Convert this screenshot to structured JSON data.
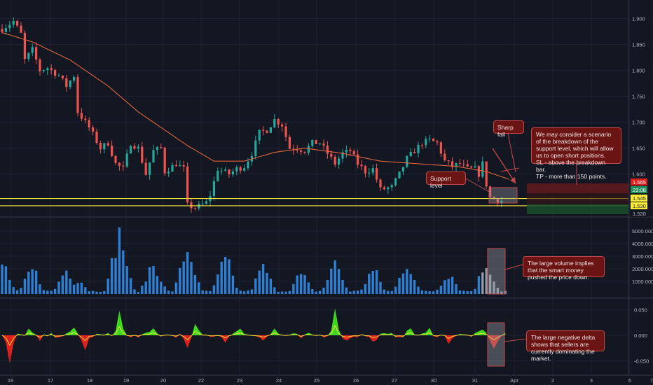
{
  "colors": {
    "background": "#131722",
    "up": "#26a69a",
    "down": "#ef5350",
    "ma": "#e0643c",
    "support": "#ffeb3b",
    "volume": "#2f7fd3",
    "delta_pos": "#3fdc1f",
    "delta_neg": "#e3211f",
    "delta_line": "#f5d835",
    "note_bg": "#6b1414",
    "note_border": "#c4474a"
  },
  "chart_data": [
    {
      "type": "candlestick",
      "x_ticks": [
        "16",
        "17",
        "18",
        "19",
        "20",
        "22",
        "23",
        "24",
        "25",
        "26",
        "27",
        "30",
        "31",
        "Apr",
        "2",
        "3",
        "6",
        "7"
      ],
      "y_ticks": [
        "1.900",
        "1.850",
        "1.800",
        "1.750",
        "1.700",
        "1.650",
        "1.600"
      ],
      "ylim": [
        1.52,
        1.925
      ],
      "close_path": [
        [
          0,
          1.88
        ],
        [
          3,
          1.895
        ],
        [
          5,
          1.87
        ],
        [
          6,
          1.82
        ],
        [
          8,
          1.84
        ],
        [
          10,
          1.8
        ],
        [
          12,
          1.805
        ],
        [
          13,
          1.8
        ],
        [
          15,
          1.79
        ],
        [
          17,
          1.77
        ],
        [
          19,
          1.79
        ],
        [
          20,
          1.72
        ],
        [
          23,
          1.69
        ],
        [
          26,
          1.65
        ],
        [
          28,
          1.66
        ],
        [
          30,
          1.62
        ],
        [
          32,
          1.61
        ],
        [
          34,
          1.66
        ],
        [
          36,
          1.65
        ],
        [
          38,
          1.6
        ],
        [
          40,
          1.645
        ],
        [
          42,
          1.65
        ],
        [
          43,
          1.605
        ],
        [
          46,
          1.62
        ],
        [
          48,
          1.61
        ],
        [
          49,
          1.54
        ],
        [
          51,
          1.535
        ],
        [
          54,
          1.545
        ],
        [
          55,
          1.56
        ],
        [
          57,
          1.61
        ],
        [
          60,
          1.6
        ],
        [
          62,
          1.61
        ],
        [
          64,
          1.615
        ],
        [
          66,
          1.64
        ],
        [
          68,
          1.68
        ],
        [
          70,
          1.685
        ],
        [
          72,
          1.705
        ],
        [
          74,
          1.695
        ],
        [
          76,
          1.65
        ],
        [
          78,
          1.65
        ],
        [
          80,
          1.645
        ],
        [
          82,
          1.66
        ],
        [
          84,
          1.66
        ],
        [
          86,
          1.64
        ],
        [
          88,
          1.62
        ],
        [
          90,
          1.64
        ],
        [
          92,
          1.645
        ],
        [
          94,
          1.62
        ],
        [
          96,
          1.605
        ],
        [
          98,
          1.61
        ],
        [
          100,
          1.57
        ],
        [
          103,
          1.575
        ],
        [
          105,
          1.6
        ],
        [
          107,
          1.63
        ],
        [
          109,
          1.645
        ],
        [
          111,
          1.66
        ],
        [
          113,
          1.665
        ],
        [
          115,
          1.66
        ],
        [
          117,
          1.625
        ],
        [
          119,
          1.615
        ],
        [
          121,
          1.62
        ],
        [
          123,
          1.61
        ],
        [
          125,
          1.61
        ],
        [
          126,
          1.6
        ],
        [
          127,
          1.62
        ],
        [
          128,
          1.58
        ],
        [
          129,
          1.555
        ],
        [
          130,
          1.552
        ],
        [
          131,
          1.549
        ]
      ],
      "moving_average": [
        [
          0,
          1.873
        ],
        [
          8,
          1.855
        ],
        [
          18,
          1.82
        ],
        [
          28,
          1.77
        ],
        [
          36,
          1.72
        ],
        [
          44,
          1.68
        ],
        [
          49,
          1.655
        ],
        [
          56,
          1.625
        ],
        [
          64,
          1.625
        ],
        [
          72,
          1.642
        ],
        [
          80,
          1.65
        ],
        [
          90,
          1.64
        ],
        [
          100,
          1.625
        ],
        [
          110,
          1.62
        ],
        [
          120,
          1.615
        ],
        [
          128,
          1.605
        ],
        [
          134,
          1.59
        ]
      ],
      "support_lines": [
        1.553,
        1.539
      ],
      "price_labels": [
        {
          "text": "1.565",
          "kind": "stop"
        },
        {
          "text": "23:08",
          "kind": "countdown"
        },
        {
          "text": "1.545",
          "kind": "support"
        },
        {
          "text": "1.530",
          "kind": "support"
        },
        {
          "text": "1.520",
          "kind": "plain"
        }
      ]
    },
    {
      "type": "bar",
      "name": "volume",
      "y_ticks": [
        "5000.000",
        "4000.000",
        "3000.000",
        "2000.000",
        "1000.000"
      ],
      "ylim": [
        0,
        6000
      ],
      "peaks": [
        [
          0,
          3000
        ],
        [
          8,
          2400
        ],
        [
          17,
          2400
        ],
        [
          20,
          1500
        ],
        [
          31,
          5900
        ],
        [
          40,
          3000
        ],
        [
          49,
          4400
        ],
        [
          59,
          3300
        ],
        [
          69,
          2600
        ],
        [
          79,
          1900
        ],
        [
          88,
          3000
        ],
        [
          98,
          2300
        ],
        [
          107,
          3100
        ],
        [
          118,
          2100
        ],
        [
          128,
          3000
        ],
        [
          133,
          300
        ]
      ],
      "floor": 300
    },
    {
      "type": "area",
      "name": "delta",
      "y_ticks": [
        "0.050",
        "0.000",
        "-0.050"
      ],
      "ylim": [
        -0.07,
        0.07
      ],
      "spikes": [
        [
          2,
          -0.058
        ],
        [
          7,
          0.012
        ],
        [
          10,
          -0.012
        ],
        [
          19,
          0.013
        ],
        [
          22,
          -0.03
        ],
        [
          31,
          0.046
        ],
        [
          34,
          -0.006
        ],
        [
          40,
          0.012
        ],
        [
          49,
          -0.03
        ],
        [
          51,
          0.02
        ],
        [
          59,
          -0.01
        ],
        [
          63,
          0.017
        ],
        [
          69,
          -0.006
        ],
        [
          72,
          0.012
        ],
        [
          79,
          -0.006
        ],
        [
          88,
          0.05
        ],
        [
          91,
          -0.012
        ],
        [
          98,
          -0.015
        ],
        [
          108,
          0.014
        ],
        [
          113,
          0.012
        ],
        [
          118,
          -0.013
        ],
        [
          127,
          0.01
        ],
        [
          130,
          -0.03
        ],
        [
          133,
          0.004
        ]
      ]
    }
  ],
  "notes": {
    "sharp_fall": "Sharp fall",
    "support_level": "Support level",
    "scenario": "We may consider a scenario of the breakdown of the support level, which will allow us to open short positions.\nSL - above the breakdown bar.\nTP - more than 150 points.",
    "volume": "The large volume implies that the smart money pushed the price down.",
    "delta": "The large negative delta shows that sellers are currently dominating the market."
  }
}
